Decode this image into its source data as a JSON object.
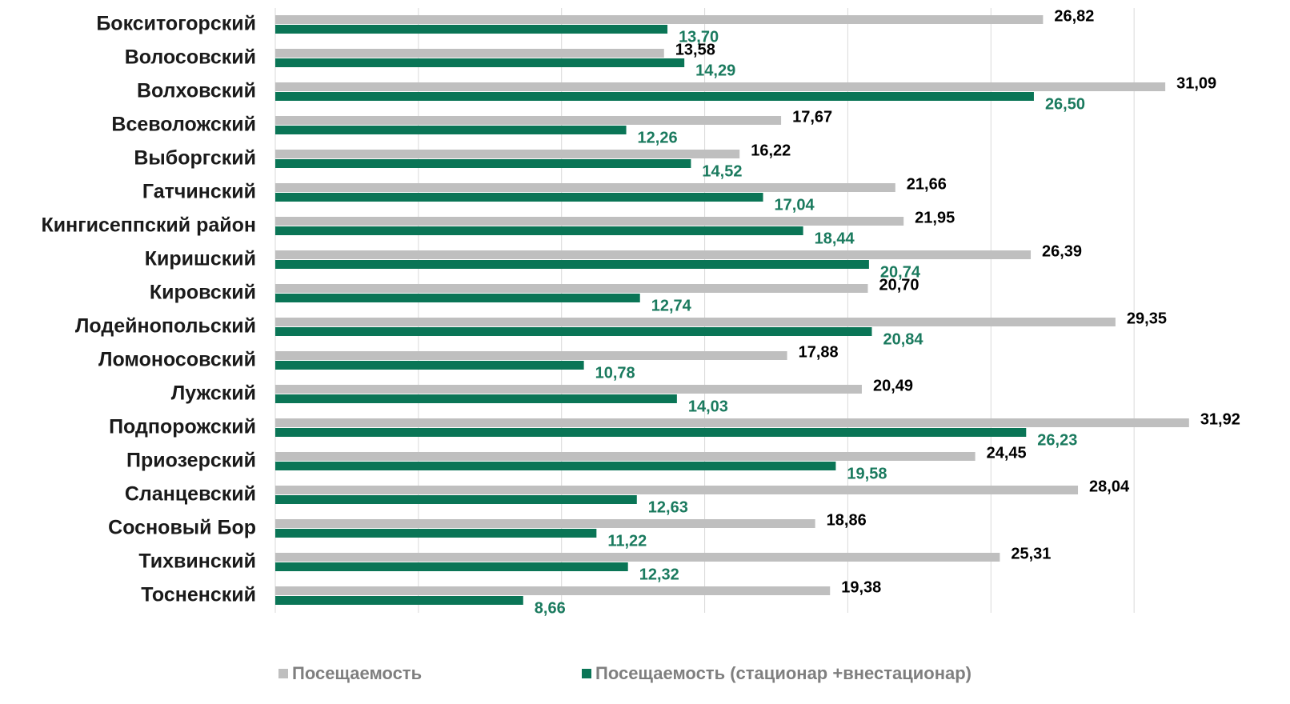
{
  "chart_data": {
    "type": "bar",
    "orientation": "horizontal",
    "categories": [
      "Бокситогорский",
      "Волосовский",
      "Волховский",
      "Всеволожский",
      "Выборгский",
      "Гатчинский",
      "Кингисеппский район",
      "Киришский",
      "Кировский",
      "Лодейнопольский",
      "Ломоносовский",
      "Лужский",
      "Подпорожский",
      "Приозерский",
      "Сланцевский",
      "Сосновый Бор",
      "Тихвинский",
      "Тосненский"
    ],
    "series": [
      {
        "name": "Посещаемость",
        "color": "#bfbfbf",
        "label_color": "#000000",
        "values": [
          26.82,
          13.58,
          31.09,
          17.67,
          16.22,
          21.66,
          21.95,
          26.39,
          20.7,
          29.35,
          17.88,
          20.49,
          31.92,
          24.45,
          28.04,
          18.86,
          25.31,
          19.38
        ],
        "value_labels": [
          "26,82",
          "13,58",
          "31,09",
          "17,67",
          "16,22",
          "21,66",
          "21,95",
          "26,39",
          "20,70",
          "29,35",
          "17,88",
          "20,49",
          "31,92",
          "24,45",
          "28,04",
          "18,86",
          "25,31",
          "19,38"
        ]
      },
      {
        "name": "Посещаемость (стационар +внестационар)",
        "color": "#0a7556",
        "label_color": "#1a7a5e",
        "values": [
          13.7,
          14.29,
          26.5,
          12.26,
          14.52,
          17.04,
          18.44,
          20.74,
          12.74,
          20.84,
          10.78,
          14.03,
          26.23,
          19.58,
          12.63,
          11.22,
          12.32,
          8.66
        ],
        "value_labels": [
          "13,70",
          "14,29",
          "26,50",
          "12,26",
          "14,52",
          "17,04",
          "18,44",
          "20,74",
          "12,74",
          "20,84",
          "10,78",
          "14,03",
          "26,23",
          "19,58",
          "12,63",
          "11,22",
          "12,32",
          "8,66"
        ]
      }
    ],
    "xlim": [
      0,
      35
    ],
    "xticks": [
      0,
      5,
      10,
      15,
      20,
      25,
      30
    ],
    "grid": true,
    "legend": "bottom"
  }
}
